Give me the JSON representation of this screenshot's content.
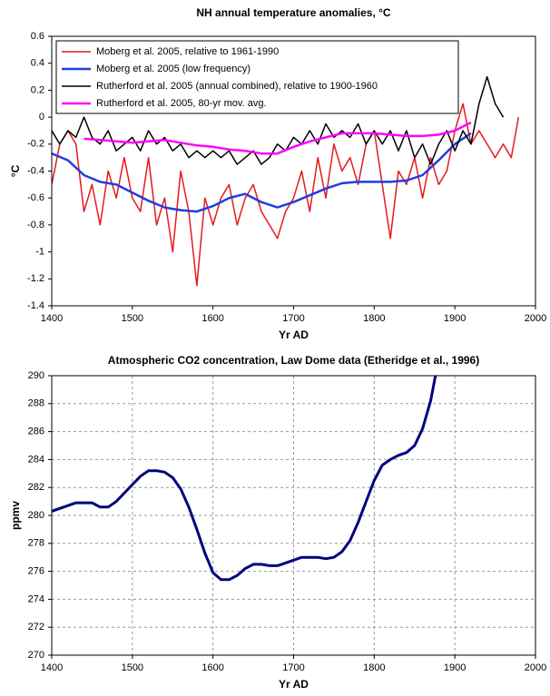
{
  "chart_data": [
    {
      "type": "line",
      "title": "NH annual temperature anomalies, °C",
      "xlabel": "Yr AD",
      "ylabel": "°C",
      "xlim": [
        1400,
        2000
      ],
      "xticks": [
        1400,
        1500,
        1600,
        1700,
        1800,
        1900,
        2000
      ],
      "ylim": [
        -1.4,
        0.6
      ],
      "yticks": [
        0.6,
        0.4,
        0.2,
        0,
        -0.2,
        -0.4,
        -0.6,
        -0.8,
        -1,
        -1.2,
        -1.4
      ],
      "grid": false,
      "legend": "upper left",
      "series": [
        {
          "name": "Moberg et al. 2005, relative to 1961-1990",
          "color": "#e41a1c",
          "width": 1.5,
          "x": [
            1400,
            1410,
            1420,
            1430,
            1440,
            1450,
            1460,
            1470,
            1480,
            1490,
            1500,
            1510,
            1520,
            1530,
            1540,
            1550,
            1560,
            1570,
            1580,
            1590,
            1600,
            1610,
            1620,
            1630,
            1640,
            1650,
            1660,
            1670,
            1680,
            1690,
            1700,
            1710,
            1720,
            1730,
            1740,
            1750,
            1760,
            1770,
            1780,
            1790,
            1800,
            1810,
            1820,
            1830,
            1840,
            1850,
            1860,
            1870,
            1880,
            1890,
            1900,
            1910,
            1920,
            1930,
            1940,
            1950,
            1960,
            1970,
            1979
          ],
          "values": [
            -0.5,
            -0.2,
            -0.1,
            -0.2,
            -0.7,
            -0.5,
            -0.8,
            -0.4,
            -0.6,
            -0.3,
            -0.6,
            -0.7,
            -0.3,
            -0.8,
            -0.6,
            -1.0,
            -0.4,
            -0.7,
            -1.25,
            -0.6,
            -0.8,
            -0.6,
            -0.5,
            -0.8,
            -0.6,
            -0.5,
            -0.7,
            -0.8,
            -0.9,
            -0.7,
            -0.6,
            -0.4,
            -0.7,
            -0.3,
            -0.6,
            -0.2,
            -0.4,
            -0.3,
            -0.5,
            -0.2,
            -0.1,
            -0.5,
            -0.9,
            -0.4,
            -0.5,
            -0.3,
            -0.6,
            -0.3,
            -0.5,
            -0.4,
            -0.1,
            0.1,
            -0.2,
            -0.1,
            -0.2,
            -0.3,
            -0.2,
            -0.3,
            0.0
          ]
        },
        {
          "name": "Moberg et al. 2005 (low frequency)",
          "color": "#1f3fe0",
          "width": 2.5,
          "x": [
            1400,
            1420,
            1440,
            1460,
            1480,
            1500,
            1520,
            1540,
            1560,
            1580,
            1600,
            1620,
            1640,
            1660,
            1680,
            1700,
            1720,
            1740,
            1760,
            1780,
            1800,
            1820,
            1840,
            1860,
            1880,
            1900,
            1920
          ],
          "values": [
            -0.27,
            -0.32,
            -0.43,
            -0.48,
            -0.5,
            -0.56,
            -0.62,
            -0.67,
            -0.69,
            -0.7,
            -0.66,
            -0.6,
            -0.57,
            -0.63,
            -0.67,
            -0.63,
            -0.58,
            -0.53,
            -0.49,
            -0.48,
            -0.48,
            -0.48,
            -0.47,
            -0.43,
            -0.32,
            -0.2,
            -0.12
          ]
        },
        {
          "name": "Rutherford et al. 2005 (annual combined), relative to 1900-1960",
          "color": "#000000",
          "width": 1.5,
          "x": [
            1400,
            1410,
            1420,
            1430,
            1440,
            1450,
            1460,
            1470,
            1480,
            1490,
            1500,
            1510,
            1520,
            1530,
            1540,
            1550,
            1560,
            1570,
            1580,
            1590,
            1600,
            1610,
            1620,
            1630,
            1640,
            1650,
            1660,
            1670,
            1680,
            1690,
            1700,
            1710,
            1720,
            1730,
            1740,
            1750,
            1760,
            1770,
            1780,
            1790,
            1800,
            1810,
            1820,
            1830,
            1840,
            1850,
            1860,
            1870,
            1880,
            1890,
            1900,
            1910,
            1920,
            1930,
            1940,
            1950,
            1960
          ],
          "values": [
            -0.1,
            -0.2,
            -0.1,
            -0.15,
            0.0,
            -0.15,
            -0.2,
            -0.1,
            -0.25,
            -0.2,
            -0.15,
            -0.25,
            -0.1,
            -0.2,
            -0.15,
            -0.25,
            -0.2,
            -0.3,
            -0.25,
            -0.3,
            -0.25,
            -0.3,
            -0.25,
            -0.35,
            -0.3,
            -0.25,
            -0.35,
            -0.3,
            -0.2,
            -0.25,
            -0.15,
            -0.2,
            -0.1,
            -0.2,
            -0.05,
            -0.15,
            -0.1,
            -0.15,
            -0.05,
            -0.2,
            -0.1,
            -0.2,
            -0.1,
            -0.25,
            -0.1,
            -0.3,
            -0.2,
            -0.35,
            -0.2,
            -0.1,
            -0.25,
            -0.1,
            -0.2,
            0.1,
            0.3,
            0.1,
            0.0
          ]
        },
        {
          "name": "Rutherford et al. 2005, 80-yr mov. avg.",
          "color": "#ff00ff",
          "width": 2.5,
          "x": [
            1440,
            1460,
            1480,
            1500,
            1520,
            1540,
            1560,
            1580,
            1600,
            1620,
            1640,
            1660,
            1680,
            1700,
            1720,
            1740,
            1760,
            1780,
            1800,
            1820,
            1840,
            1860,
            1880,
            1900,
            1920
          ],
          "values": [
            -0.16,
            -0.17,
            -0.18,
            -0.19,
            -0.18,
            -0.17,
            -0.19,
            -0.21,
            -0.22,
            -0.24,
            -0.25,
            -0.27,
            -0.27,
            -0.22,
            -0.18,
            -0.15,
            -0.12,
            -0.12,
            -0.12,
            -0.13,
            -0.14,
            -0.14,
            -0.13,
            -0.1,
            -0.04
          ]
        }
      ]
    },
    {
      "type": "line",
      "title": "Atmospheric CO2 concentration, Law Dome data (Etheridge et al., 1996)",
      "xlabel": "Yr AD",
      "ylabel": "ppmv",
      "xlim": [
        1400,
        2000
      ],
      "xticks": [
        1400,
        1500,
        1600,
        1700,
        1800,
        1900,
        2000
      ],
      "ylim": [
        270,
        290
      ],
      "yticks": [
        290,
        288,
        286,
        284,
        282,
        280,
        278,
        276,
        274,
        272,
        270
      ],
      "grid": true,
      "series": [
        {
          "color": "#000080",
          "width": 3,
          "x": [
            1400,
            1420,
            1430,
            1450,
            1460,
            1470,
            1480,
            1500,
            1510,
            1520,
            1530,
            1540,
            1550,
            1560,
            1570,
            1580,
            1590,
            1600,
            1610,
            1620,
            1630,
            1640,
            1650,
            1660,
            1670,
            1680,
            1690,
            1700,
            1710,
            1720,
            1730,
            1740,
            1750,
            1760,
            1770,
            1780,
            1790,
            1800,
            1810,
            1820,
            1830,
            1840,
            1850,
            1860,
            1870,
            1876
          ],
          "values": [
            280.3,
            280.7,
            280.9,
            280.9,
            280.6,
            280.6,
            281.0,
            282.2,
            282.8,
            283.2,
            283.2,
            283.1,
            282.7,
            281.9,
            280.6,
            279.0,
            277.3,
            275.9,
            275.4,
            275.4,
            275.7,
            276.2,
            276.5,
            276.5,
            276.4,
            276.4,
            276.6,
            276.8,
            277.0,
            277.0,
            277.0,
            276.9,
            277.0,
            277.4,
            278.2,
            279.5,
            281.0,
            282.5,
            283.6,
            284.0,
            284.3,
            284.5,
            285.0,
            286.2,
            288.2,
            290
          ]
        }
      ]
    }
  ]
}
